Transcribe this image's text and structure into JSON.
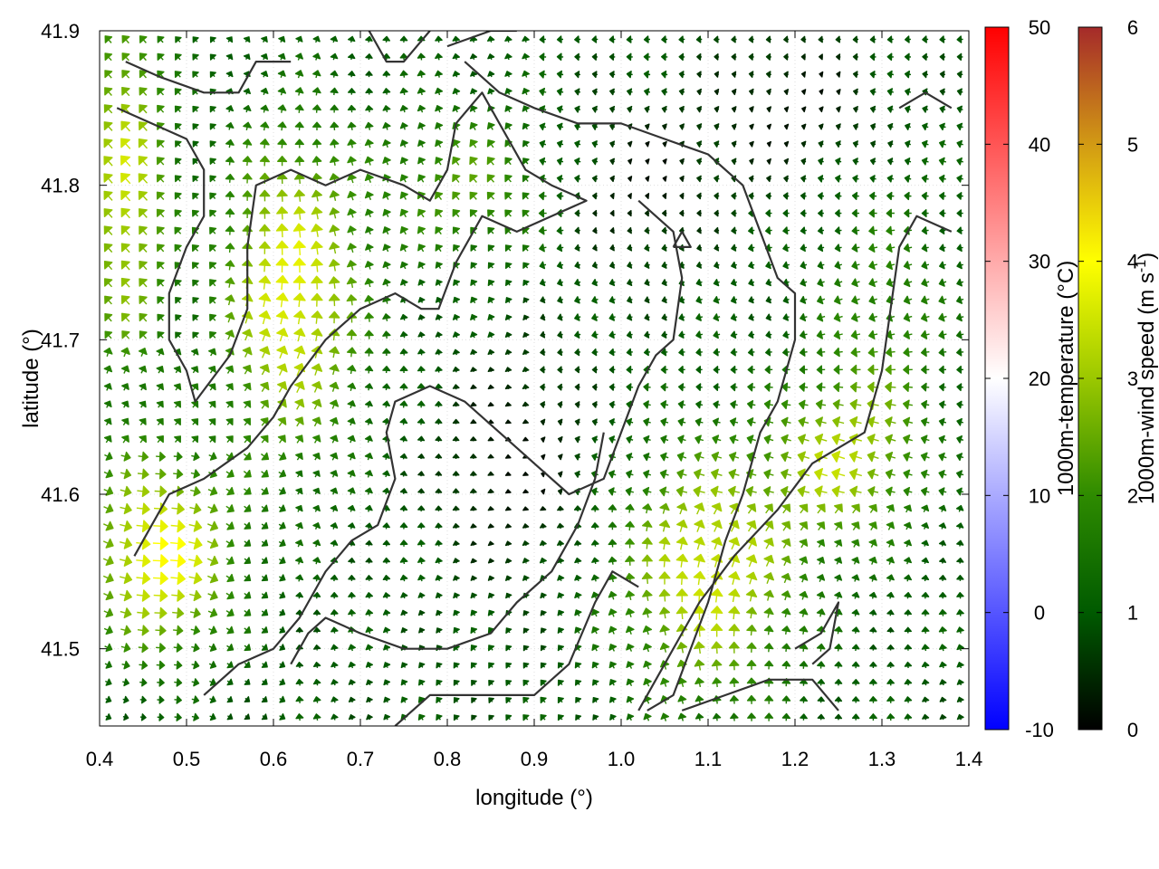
{
  "chart_data": {
    "type": "vector-field",
    "xlabel": "longitude (°)",
    "ylabel": "latitude (°)",
    "xlim": [
      0.4,
      1.4
    ],
    "ylim": [
      41.45,
      41.9
    ],
    "xticks": [
      "0.4",
      "0.5",
      "0.6",
      "0.7",
      "0.8",
      "0.9",
      "1.0",
      "1.1",
      "1.2",
      "1.3",
      "1.4"
    ],
    "yticks": [
      "41.5",
      "41.6",
      "41.7",
      "41.8",
      "41.9"
    ],
    "grid": true,
    "colorbars": [
      {
        "name": "temperature",
        "label": "1000m-temperature (°C)",
        "range": [
          -10,
          50
        ],
        "ticks": [
          "-10",
          "0",
          "10",
          "20",
          "30",
          "40",
          "50"
        ],
        "colors": [
          "#0000ff",
          "#ffffff",
          "#ff0000"
        ]
      },
      {
        "name": "wind",
        "label_main": "1000m-wind speed (m s",
        "label_sup": "-1",
        "label_end": ")",
        "range": [
          0,
          6
        ],
        "ticks": [
          "0",
          "1",
          "2",
          "3",
          "4",
          "5",
          "6"
        ],
        "colors": [
          "#000000",
          "#005a00",
          "#2e8b00",
          "#9bc800",
          "#ffff00",
          "#d29a14",
          "#a52a2a"
        ]
      }
    ],
    "topography_contours": [
      [
        [
          0.43,
          41.88
        ],
        [
          0.47,
          41.87
        ],
        [
          0.52,
          41.86
        ],
        [
          0.56,
          41.86
        ],
        [
          0.58,
          41.88
        ],
        [
          0.62,
          41.88
        ]
      ],
      [
        [
          0.42,
          41.85
        ],
        [
          0.46,
          41.84
        ],
        [
          0.5,
          41.83
        ],
        [
          0.52,
          41.81
        ],
        [
          0.52,
          41.78
        ],
        [
          0.5,
          41.76
        ],
        [
          0.48,
          41.73
        ],
        [
          0.48,
          41.7
        ],
        [
          0.5,
          41.68
        ],
        [
          0.51,
          41.66
        ],
        [
          0.55,
          41.69
        ],
        [
          0.57,
          41.72
        ],
        [
          0.57,
          41.76
        ],
        [
          0.58,
          41.8
        ],
        [
          0.62,
          41.81
        ],
        [
          0.66,
          41.8
        ],
        [
          0.7,
          41.81
        ],
        [
          0.75,
          41.8
        ],
        [
          0.78,
          41.79
        ],
        [
          0.8,
          41.81
        ],
        [
          0.81,
          41.84
        ],
        [
          0.84,
          41.86
        ],
        [
          0.86,
          41.84
        ],
        [
          0.89,
          41.81
        ],
        [
          0.92,
          41.8
        ],
        [
          0.96,
          41.79
        ],
        [
          0.92,
          41.78
        ],
        [
          0.88,
          41.77
        ],
        [
          0.84,
          41.78
        ],
        [
          0.81,
          41.75
        ],
        [
          0.79,
          41.72
        ],
        [
          0.77,
          41.72
        ],
        [
          0.74,
          41.73
        ],
        [
          0.7,
          41.72
        ],
        [
          0.66,
          41.7
        ],
        [
          0.62,
          41.67
        ],
        [
          0.6,
          41.65
        ],
        [
          0.57,
          41.63
        ],
        [
          0.52,
          41.61
        ],
        [
          0.48,
          41.6
        ],
        [
          0.46,
          41.58
        ],
        [
          0.44,
          41.56
        ]
      ],
      [
        [
          0.82,
          41.88
        ],
        [
          0.86,
          41.86
        ],
        [
          0.9,
          41.85
        ],
        [
          0.95,
          41.84
        ],
        [
          1.0,
          41.84
        ],
        [
          1.05,
          41.83
        ],
        [
          1.1,
          41.82
        ],
        [
          1.14,
          41.8
        ],
        [
          1.16,
          41.77
        ],
        [
          1.18,
          41.74
        ],
        [
          1.2,
          41.73
        ],
        [
          1.2,
          41.7
        ],
        [
          1.18,
          41.66
        ],
        [
          1.16,
          41.64
        ],
        [
          1.14,
          41.6
        ],
        [
          1.12,
          41.57
        ],
        [
          1.1,
          41.53
        ],
        [
          1.08,
          41.5
        ],
        [
          1.06,
          41.47
        ],
        [
          1.03,
          41.46
        ]
      ],
      [
        [
          0.71,
          41.9
        ],
        [
          0.73,
          41.88
        ],
        [
          0.75,
          41.88
        ],
        [
          0.78,
          41.9
        ]
      ],
      [
        [
          0.8,
          41.89
        ],
        [
          0.85,
          41.9
        ],
        [
          0.88,
          41.9
        ]
      ],
      [
        [
          0.52,
          41.47
        ],
        [
          0.56,
          41.49
        ],
        [
          0.6,
          41.5
        ],
        [
          0.63,
          41.52
        ],
        [
          0.66,
          41.55
        ],
        [
          0.69,
          41.57
        ],
        [
          0.72,
          41.58
        ],
        [
          0.74,
          41.61
        ],
        [
          0.73,
          41.64
        ],
        [
          0.74,
          41.66
        ],
        [
          0.78,
          41.67
        ],
        [
          0.82,
          41.66
        ],
        [
          0.86,
          41.64
        ],
        [
          0.9,
          41.62
        ],
        [
          0.94,
          41.6
        ],
        [
          0.98,
          41.61
        ],
        [
          1.0,
          41.64
        ],
        [
          1.02,
          41.67
        ],
        [
          1.04,
          41.69
        ],
        [
          1.06,
          41.7
        ],
        [
          1.07,
          41.74
        ],
        [
          1.06,
          41.77
        ],
        [
          1.02,
          41.79
        ]
      ],
      [
        [
          0.62,
          41.49
        ],
        [
          0.64,
          41.51
        ],
        [
          0.66,
          41.52
        ],
        [
          0.7,
          41.51
        ],
        [
          0.75,
          41.5
        ],
        [
          0.8,
          41.5
        ],
        [
          0.85,
          41.51
        ],
        [
          0.88,
          41.53
        ],
        [
          0.92,
          41.55
        ],
        [
          0.95,
          41.58
        ],
        [
          0.97,
          41.61
        ],
        [
          0.98,
          41.64
        ]
      ],
      [
        [
          0.74,
          41.45
        ],
        [
          0.78,
          41.47
        ],
        [
          0.82,
          41.47
        ],
        [
          0.86,
          41.47
        ],
        [
          0.9,
          41.47
        ],
        [
          0.94,
          41.49
        ],
        [
          0.97,
          41.53
        ],
        [
          0.99,
          41.55
        ],
        [
          1.02,
          41.54
        ]
      ],
      [
        [
          1.02,
          41.46
        ],
        [
          1.05,
          41.49
        ],
        [
          1.09,
          41.53
        ],
        [
          1.13,
          41.56
        ],
        [
          1.18,
          41.59
        ],
        [
          1.22,
          41.62
        ],
        [
          1.25,
          41.63
        ],
        [
          1.28,
          41.64
        ],
        [
          1.3,
          41.68
        ],
        [
          1.31,
          41.72
        ],
        [
          1.32,
          41.76
        ],
        [
          1.34,
          41.78
        ],
        [
          1.38,
          41.77
        ]
      ],
      [
        [
          1.2,
          41.5
        ],
        [
          1.23,
          41.51
        ],
        [
          1.25,
          41.53
        ],
        [
          1.24,
          41.5
        ],
        [
          1.22,
          41.49
        ]
      ],
      [
        [
          1.07,
          41.46
        ],
        [
          1.12,
          41.47
        ],
        [
          1.17,
          41.48
        ],
        [
          1.22,
          41.48
        ],
        [
          1.25,
          41.46
        ]
      ],
      [
        [
          1.32,
          41.85
        ],
        [
          1.35,
          41.86
        ],
        [
          1.38,
          41.85
        ]
      ],
      [
        [
          1.06,
          41.76
        ],
        [
          1.08,
          41.76
        ],
        [
          1.07,
          41.77
        ],
        [
          1.06,
          41.76
        ]
      ]
    ]
  }
}
